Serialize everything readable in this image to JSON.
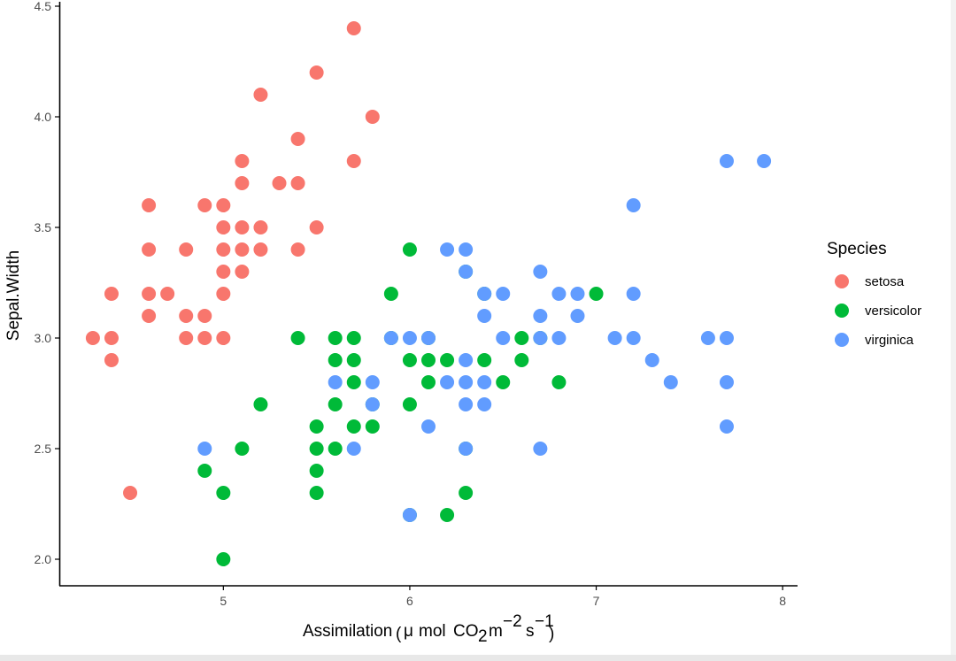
{
  "chart_data": {
    "type": "scatter",
    "xlabel": "Assimilation",
    "xlabel_units": {
      "mu": "μ",
      "mol": "mol",
      "co2_base": "CO",
      "co2_sub": "2",
      "m": "m",
      "m_exp": "−2",
      "s": "s",
      "s_exp": "−1"
    },
    "ylabel": "Sepal.Width",
    "xlim": [
      4.12,
      8.08
    ],
    "ylim": [
      1.88,
      4.52
    ],
    "x_ticks": [
      5,
      6,
      7,
      8
    ],
    "x_tick_labels": [
      "5",
      "6",
      "7",
      "8"
    ],
    "y_ticks": [
      2.0,
      2.5,
      3.0,
      3.5,
      4.0,
      4.5
    ],
    "y_tick_labels": [
      "2.0",
      "2.5",
      "3.0",
      "3.5",
      "4.0",
      "4.5"
    ],
    "grid": false,
    "legend": {
      "title": "Species",
      "position": "right",
      "entries": [
        "setosa",
        "versicolor",
        "virginica"
      ]
    },
    "series": [
      {
        "name": "setosa",
        "color": "#F8766D",
        "points": [
          [
            4.3,
            3.0
          ],
          [
            4.4,
            2.9
          ],
          [
            4.4,
            3.0
          ],
          [
            4.4,
            3.2
          ],
          [
            4.5,
            2.3
          ],
          [
            4.6,
            3.1
          ],
          [
            4.6,
            3.2
          ],
          [
            4.6,
            3.4
          ],
          [
            4.6,
            3.6
          ],
          [
            4.7,
            3.2
          ],
          [
            4.8,
            3.0
          ],
          [
            4.8,
            3.1
          ],
          [
            4.8,
            3.4
          ],
          [
            4.9,
            3.0
          ],
          [
            4.9,
            3.1
          ],
          [
            4.9,
            3.6
          ],
          [
            5.0,
            3.0
          ],
          [
            5.0,
            3.2
          ],
          [
            5.0,
            3.3
          ],
          [
            5.0,
            3.4
          ],
          [
            5.0,
            3.5
          ],
          [
            5.0,
            3.6
          ],
          [
            5.1,
            3.3
          ],
          [
            5.1,
            3.4
          ],
          [
            5.1,
            3.5
          ],
          [
            5.1,
            3.7
          ],
          [
            5.1,
            3.8
          ],
          [
            5.2,
            3.4
          ],
          [
            5.2,
            3.5
          ],
          [
            5.2,
            4.1
          ],
          [
            5.3,
            3.7
          ],
          [
            5.4,
            3.4
          ],
          [
            5.4,
            3.7
          ],
          [
            5.4,
            3.9
          ],
          [
            5.5,
            3.5
          ],
          [
            5.5,
            4.2
          ],
          [
            5.7,
            3.8
          ],
          [
            5.7,
            4.4
          ],
          [
            5.8,
            4.0
          ]
        ]
      },
      {
        "name": "versicolor",
        "color": "#00BA38",
        "points": [
          [
            4.9,
            2.4
          ],
          [
            5.0,
            2.0
          ],
          [
            5.0,
            2.3
          ],
          [
            5.1,
            2.5
          ],
          [
            5.2,
            2.7
          ],
          [
            5.4,
            3.0
          ],
          [
            5.5,
            2.3
          ],
          [
            5.5,
            2.4
          ],
          [
            5.5,
            2.5
          ],
          [
            5.5,
            2.6
          ],
          [
            5.6,
            2.5
          ],
          [
            5.6,
            2.7
          ],
          [
            5.6,
            2.9
          ],
          [
            5.6,
            3.0
          ],
          [
            5.7,
            2.6
          ],
          [
            5.7,
            2.8
          ],
          [
            5.7,
            2.9
          ],
          [
            5.7,
            3.0
          ],
          [
            5.8,
            2.6
          ],
          [
            5.8,
            2.7
          ],
          [
            5.9,
            3.0
          ],
          [
            5.9,
            3.2
          ],
          [
            6.0,
            2.2
          ],
          [
            6.0,
            2.7
          ],
          [
            6.0,
            2.9
          ],
          [
            6.0,
            3.4
          ],
          [
            6.1,
            2.8
          ],
          [
            6.1,
            2.9
          ],
          [
            6.1,
            3.0
          ],
          [
            6.2,
            2.2
          ],
          [
            6.2,
            2.9
          ],
          [
            6.3,
            2.3
          ],
          [
            6.3,
            2.5
          ],
          [
            6.3,
            3.3
          ],
          [
            6.4,
            2.9
          ],
          [
            6.4,
            3.2
          ],
          [
            6.5,
            2.8
          ],
          [
            6.6,
            2.9
          ],
          [
            6.6,
            3.0
          ],
          [
            6.7,
            3.0
          ],
          [
            6.8,
            2.8
          ],
          [
            7.0,
            3.2
          ]
        ]
      },
      {
        "name": "virginica",
        "color": "#619CFF",
        "points": [
          [
            4.9,
            2.5
          ],
          [
            5.6,
            2.8
          ],
          [
            5.7,
            2.5
          ],
          [
            5.8,
            2.7
          ],
          [
            5.8,
            2.8
          ],
          [
            5.9,
            3.0
          ],
          [
            6.0,
            2.2
          ],
          [
            6.0,
            3.0
          ],
          [
            6.1,
            2.6
          ],
          [
            6.1,
            3.0
          ],
          [
            6.2,
            2.8
          ],
          [
            6.2,
            3.4
          ],
          [
            6.3,
            2.5
          ],
          [
            6.3,
            2.7
          ],
          [
            6.3,
            2.8
          ],
          [
            6.3,
            2.9
          ],
          [
            6.3,
            3.3
          ],
          [
            6.3,
            3.4
          ],
          [
            6.4,
            2.7
          ],
          [
            6.4,
            2.8
          ],
          [
            6.4,
            3.1
          ],
          [
            6.4,
            3.2
          ],
          [
            6.5,
            3.0
          ],
          [
            6.5,
            3.2
          ],
          [
            6.7,
            2.5
          ],
          [
            6.7,
            3.0
          ],
          [
            6.7,
            3.1
          ],
          [
            6.7,
            3.3
          ],
          [
            6.8,
            3.0
          ],
          [
            6.8,
            3.2
          ],
          [
            6.9,
            3.1
          ],
          [
            6.9,
            3.2
          ],
          [
            7.1,
            3.0
          ],
          [
            7.2,
            3.0
          ],
          [
            7.2,
            3.2
          ],
          [
            7.2,
            3.6
          ],
          [
            7.3,
            2.9
          ],
          [
            7.4,
            2.8
          ],
          [
            7.6,
            3.0
          ],
          [
            7.7,
            2.6
          ],
          [
            7.7,
            2.8
          ],
          [
            7.7,
            3.0
          ],
          [
            7.7,
            3.8
          ],
          [
            7.9,
            3.8
          ]
        ]
      }
    ]
  }
}
